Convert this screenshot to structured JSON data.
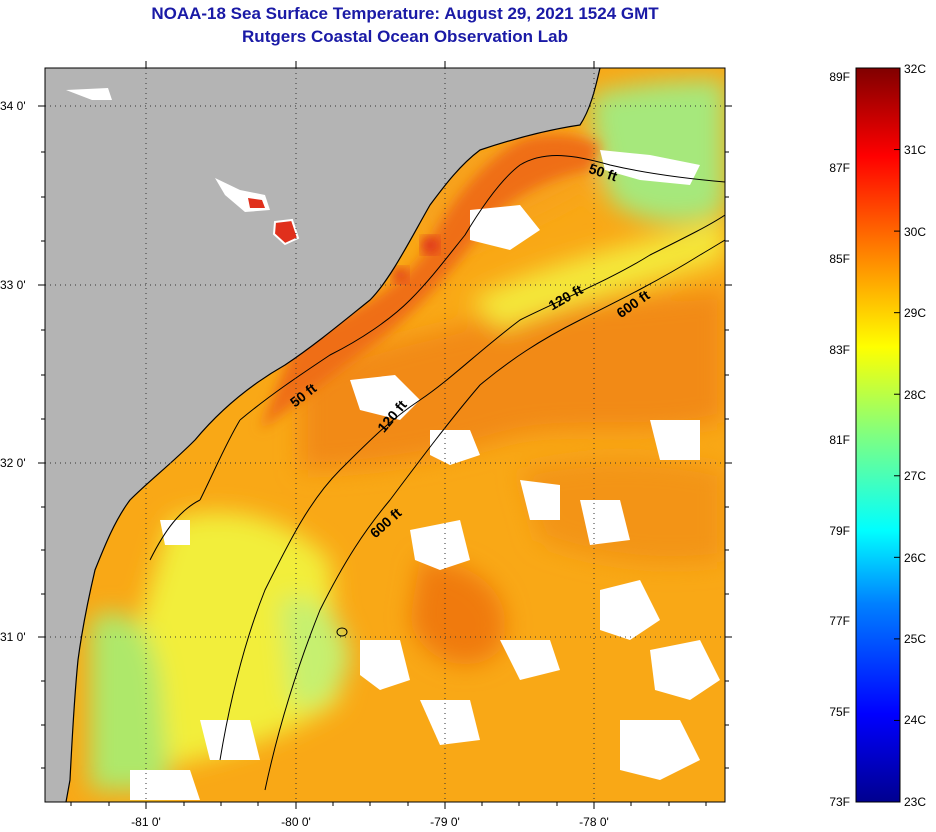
{
  "header": {
    "title": "NOAA-18 Sea Surface Temperature:  August 29, 2021 1524 GMT",
    "subtitle": "Rutgers Coastal Ocean Observation Lab"
  },
  "map": {
    "latitude_labels": [
      "34 0'",
      "33 0'",
      "32 0'",
      "31 0'"
    ],
    "longitude_labels": [
      "-81 0'",
      "-80 0'",
      "-79 0'",
      "-78 0'"
    ],
    "land_color": "#b4b4b4",
    "cloud_color": "#ffffff",
    "contours": [
      {
        "label": "50 ft"
      },
      {
        "label": "120 ft"
      },
      {
        "label": "600 ft"
      }
    ]
  },
  "colorbar": {
    "fahrenheit_labels": [
      "89F",
      "87F",
      "85F",
      "83F",
      "81F",
      "79F",
      "77F",
      "75F",
      "73F"
    ],
    "celsius_labels": [
      "32C",
      "31C",
      "30C",
      "29C",
      "28C",
      "27C",
      "26C",
      "25C",
      "24C",
      "23C"
    ],
    "colors": [
      "#00008f",
      "#0000ff",
      "#0080ff",
      "#00ffff",
      "#80ff80",
      "#ffff00",
      "#ff8000",
      "#ff0000",
      "#800000"
    ]
  }
}
